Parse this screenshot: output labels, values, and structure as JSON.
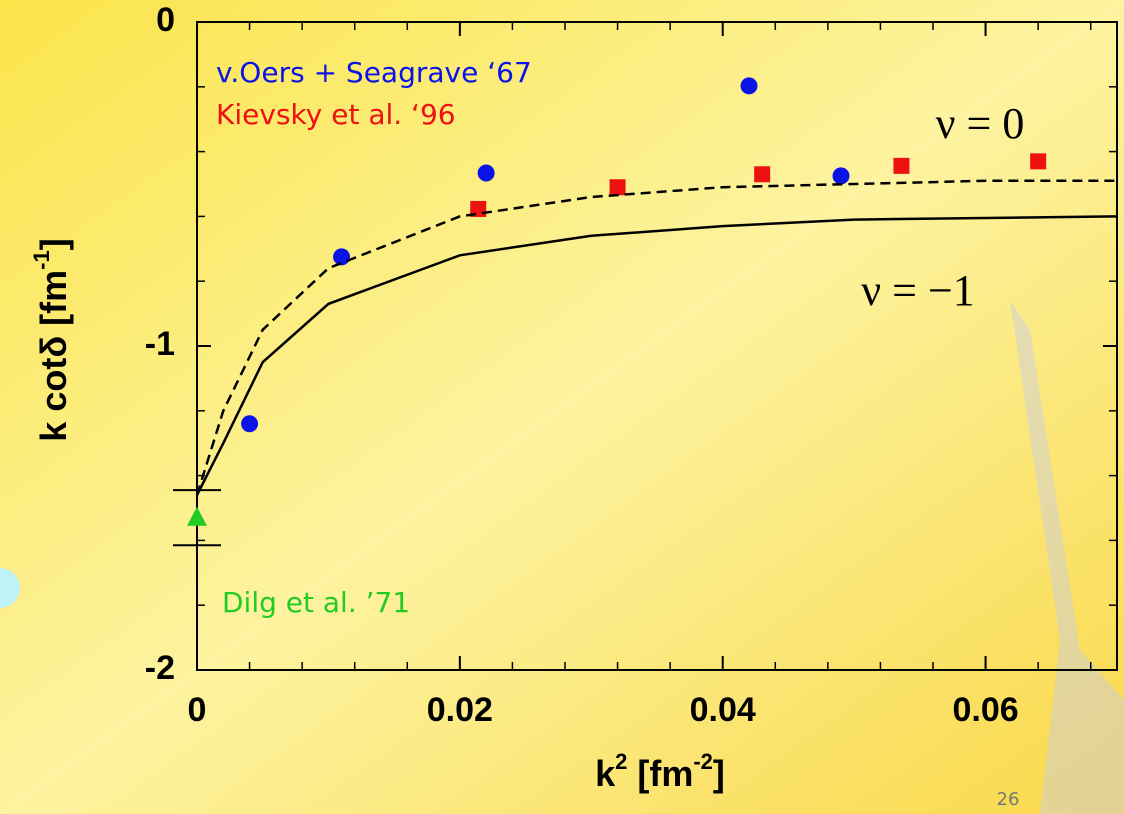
{
  "chart_data": {
    "type": "scatter",
    "x_label": [
      "k",
      "2",
      " [fm",
      "-2",
      "]"
    ],
    "y_label": [
      "k cotδ [fm",
      "-1",
      "]"
    ],
    "xlim": [
      0,
      0.07
    ],
    "ylim": [
      -2,
      0
    ],
    "xticks": [
      0,
      0.02,
      0.04,
      0.06
    ],
    "yticks": [
      -2,
      -1,
      0
    ],
    "series": [
      {
        "name": "v.Oers + Seagrave ‘67",
        "color": "#0a14e6",
        "marker": "circle",
        "x": [
          0.004,
          0.011,
          0.022,
          0.042,
          0.049
        ],
        "values": [
          -1.24,
          -0.725,
          -0.466,
          -0.197,
          -0.475
        ]
      },
      {
        "name": "Kievsky et al.  ‘96",
        "color": "#ee1111",
        "marker": "square",
        "x": [
          0.0214,
          0.032,
          0.043,
          0.0536,
          0.064
        ],
        "values": [
          -0.577,
          -0.51,
          -0.47,
          -0.444,
          -0.43
        ]
      },
      {
        "name": "Dilg et al. ’71",
        "color": "#22cc22",
        "marker": "triangle",
        "x": [
          0
        ],
        "values": [
          -1.53
        ],
        "errors": [
          0.085
        ]
      },
      {
        "name": "ν = 0",
        "color": "#000000",
        "marker": "dashed-line",
        "x": [
          0,
          0.002,
          0.005,
          0.01,
          0.02,
          0.03,
          0.04,
          0.05,
          0.06,
          0.07
        ],
        "values": [
          -1.46,
          -1.2,
          -0.95,
          -0.76,
          -0.6,
          -0.54,
          -0.51,
          -0.5,
          -0.49,
          -0.49
        ]
      },
      {
        "name": "ν = −1",
        "color": "#000000",
        "marker": "solid-line",
        "x": [
          0,
          0.002,
          0.005,
          0.01,
          0.02,
          0.03,
          0.04,
          0.05,
          0.06,
          0.07
        ],
        "values": [
          -1.46,
          -1.3,
          -1.05,
          -0.87,
          -0.72,
          -0.66,
          -0.63,
          -0.61,
          -0.605,
          -0.6
        ]
      }
    ],
    "page_number": "26"
  }
}
